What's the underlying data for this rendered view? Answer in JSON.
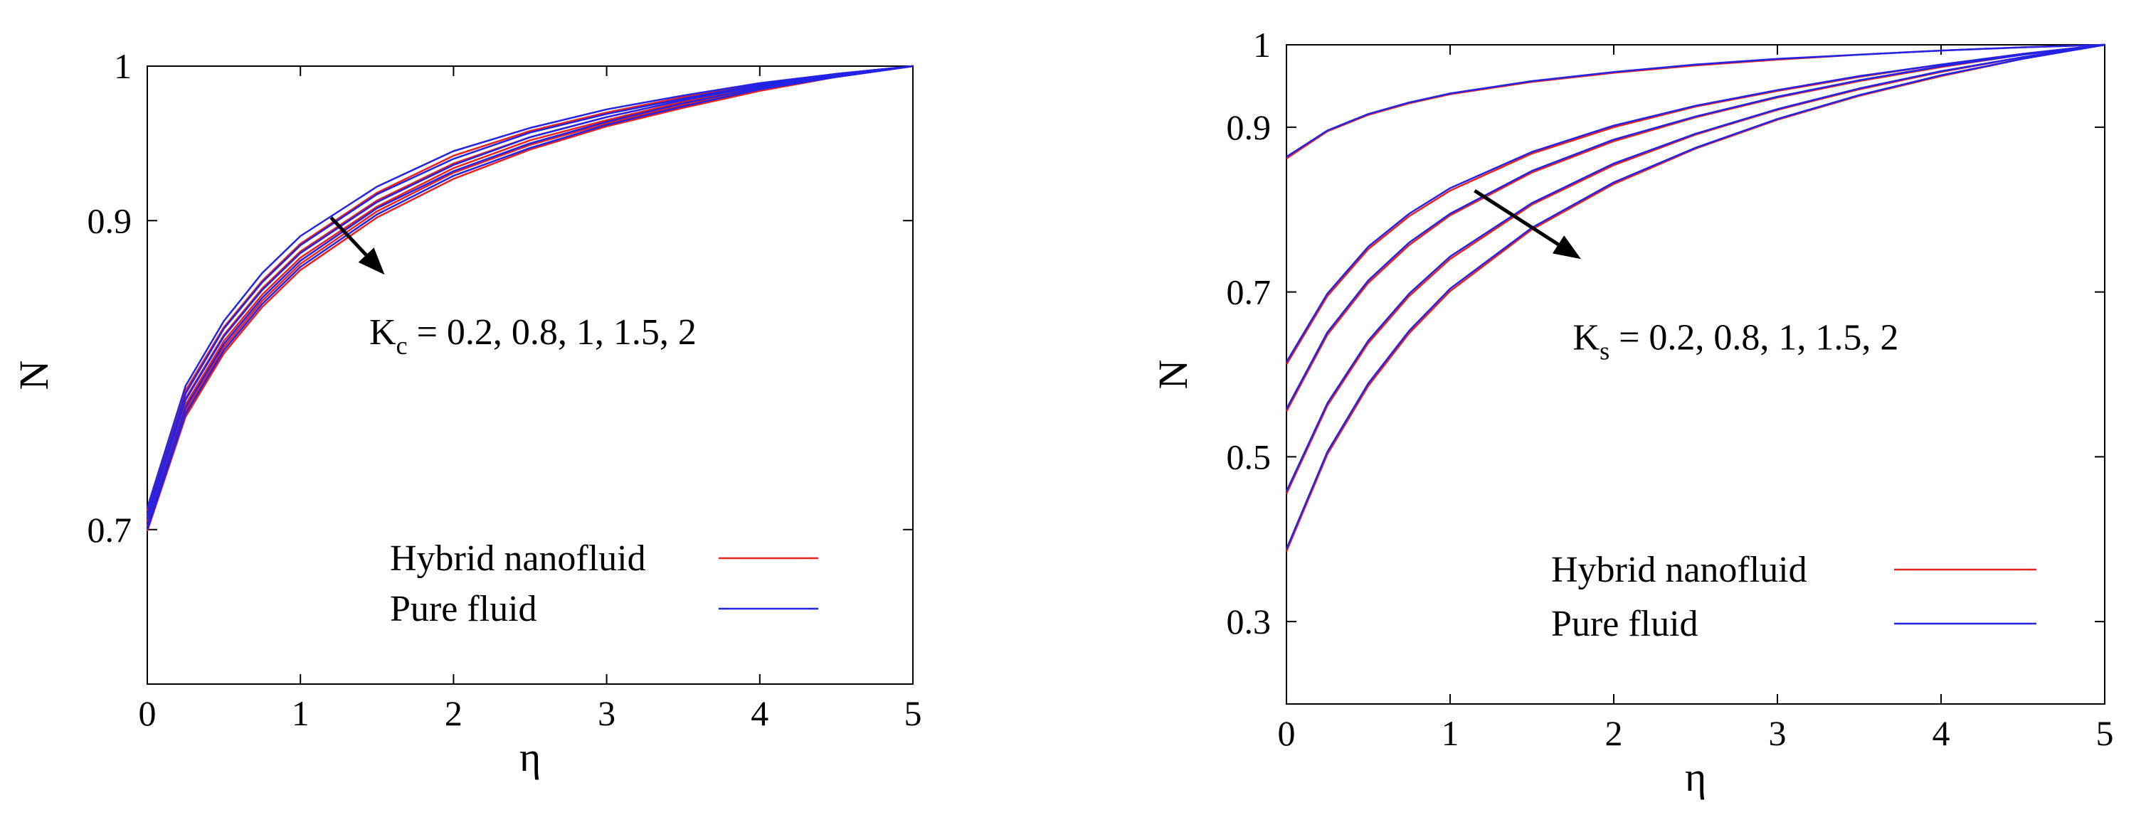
{
  "colors": {
    "hybrid": "#e8231e",
    "pure": "#2323e6",
    "axis": "#000000",
    "arrow": "#000000"
  },
  "chart_data": [
    {
      "type": "line",
      "xlabel": "η",
      "ylabel": "N",
      "xlim": [
        0,
        5
      ],
      "ylim": [
        0.6,
        1.0
      ],
      "xticks": [
        0,
        1,
        2,
        3,
        4,
        5
      ],
      "xtick_labels": [
        "0",
        "1",
        "2",
        "3",
        "4",
        "5"
      ],
      "yticks": [
        0.7,
        0.9,
        1.0
      ],
      "ytick_labels": [
        "0.7",
        "0.9",
        "1"
      ],
      "grid": false,
      "legend_position": "bottom-right",
      "legend": [
        "Hybrid nanofluid",
        "Pure fluid"
      ],
      "annotation": {
        "symbol": "K",
        "subscript": "c",
        "text": " = 0.2, 0.8, 1, 1.5, 2",
        "arrow_from": [
          1.2,
          0.902
        ],
        "arrow_to": [
          1.55,
          0.865
        ],
        "text_anchor": [
          1.45,
          0.82
        ]
      },
      "x": [
        0,
        0.25,
        0.5,
        0.75,
        1,
        1.5,
        2,
        2.5,
        3,
        3.5,
        4,
        4.5,
        5
      ],
      "series": [
        {
          "group": "Hybrid nanofluid",
          "param": "0.2",
          "values": [
            0.712,
            0.79,
            0.831,
            0.861,
            0.885,
            0.918,
            0.942,
            0.958,
            0.97,
            0.98,
            0.988,
            0.995,
            1.0
          ]
        },
        {
          "group": "Hybrid nanofluid",
          "param": "0.8",
          "values": [
            0.708,
            0.785,
            0.826,
            0.856,
            0.88,
            0.913,
            0.937,
            0.954,
            0.967,
            0.978,
            0.987,
            0.994,
            1.0
          ]
        },
        {
          "group": "Hybrid nanofluid",
          "param": "1",
          "values": [
            0.705,
            0.781,
            0.822,
            0.852,
            0.876,
            0.909,
            0.934,
            0.952,
            0.965,
            0.977,
            0.986,
            0.994,
            1.0
          ]
        },
        {
          "group": "Hybrid nanofluid",
          "param": "1.5",
          "values": [
            0.702,
            0.777,
            0.818,
            0.848,
            0.872,
            0.906,
            0.931,
            0.949,
            0.963,
            0.975,
            0.985,
            0.993,
            1.0
          ]
        },
        {
          "group": "Hybrid nanofluid",
          "param": "2",
          "values": [
            0.699,
            0.773,
            0.814,
            0.844,
            0.868,
            0.902,
            0.927,
            0.946,
            0.961,
            0.973,
            0.984,
            0.993,
            1.0
          ]
        },
        {
          "group": "Pure fluid",
          "param": "0.2",
          "values": [
            0.714,
            0.793,
            0.835,
            0.866,
            0.89,
            0.922,
            0.945,
            0.96,
            0.972,
            0.981,
            0.989,
            0.995,
            1.0
          ]
        },
        {
          "group": "Pure fluid",
          "param": "0.8",
          "values": [
            0.71,
            0.788,
            0.83,
            0.86,
            0.884,
            0.917,
            0.94,
            0.957,
            0.969,
            0.979,
            0.988,
            0.995,
            1.0
          ]
        },
        {
          "group": "Pure fluid",
          "param": "1",
          "values": [
            0.707,
            0.784,
            0.825,
            0.855,
            0.879,
            0.912,
            0.936,
            0.954,
            0.967,
            0.978,
            0.987,
            0.994,
            1.0
          ]
        },
        {
          "group": "Pure fluid",
          "param": "1.5",
          "values": [
            0.703,
            0.779,
            0.82,
            0.85,
            0.874,
            0.908,
            0.932,
            0.95,
            0.964,
            0.976,
            0.986,
            0.993,
            1.0
          ]
        },
        {
          "group": "Pure fluid",
          "param": "2",
          "values": [
            0.7,
            0.775,
            0.816,
            0.846,
            0.87,
            0.904,
            0.929,
            0.947,
            0.962,
            0.974,
            0.985,
            0.993,
            1.0
          ]
        }
      ]
    },
    {
      "type": "line",
      "xlabel": "η",
      "ylabel": "N",
      "xlim": [
        0,
        5
      ],
      "ylim": [
        0.2,
        1.0
      ],
      "xticks": [
        0,
        1,
        2,
        3,
        4,
        5
      ],
      "xtick_labels": [
        "0",
        "1",
        "2",
        "3",
        "4",
        "5"
      ],
      "yticks": [
        0.3,
        0.5,
        0.7,
        0.9,
        1.0
      ],
      "ytick_labels": [
        "0.3",
        "0.5",
        "0.7",
        "0.9",
        "1"
      ],
      "grid": false,
      "legend_position": "bottom-right",
      "legend": [
        "Hybrid nanofluid",
        "Pure fluid"
      ],
      "annotation": {
        "symbol": "K",
        "subscript": "s",
        "text": " = 0.2, 0.8, 1, 1.5, 2",
        "arrow_from": [
          1.15,
          0.823
        ],
        "arrow_to": [
          1.8,
          0.74
        ],
        "text_anchor": [
          1.75,
          0.63
        ]
      },
      "x": [
        0,
        0.25,
        0.5,
        0.75,
        1,
        1.5,
        2,
        2.5,
        3,
        3.5,
        4,
        4.5,
        5
      ],
      "series": [
        {
          "group": "Hybrid nanofluid",
          "param": "0.2",
          "values": [
            0.862,
            0.895,
            0.915,
            0.929,
            0.94,
            0.955,
            0.966,
            0.975,
            0.982,
            0.988,
            0.993,
            0.997,
            1.0
          ]
        },
        {
          "group": "Hybrid nanofluid",
          "param": "0.8",
          "values": [
            0.612,
            0.695,
            0.752,
            0.792,
            0.823,
            0.868,
            0.9,
            0.925,
            0.944,
            0.961,
            0.976,
            0.989,
            1.0
          ]
        },
        {
          "group": "Hybrid nanofluid",
          "param": "1",
          "values": [
            0.555,
            0.648,
            0.711,
            0.757,
            0.793,
            0.845,
            0.883,
            0.912,
            0.936,
            0.956,
            0.973,
            0.988,
            1.0
          ]
        },
        {
          "group": "Hybrid nanofluid",
          "param": "1.5",
          "values": [
            0.455,
            0.562,
            0.638,
            0.695,
            0.74,
            0.806,
            0.854,
            0.891,
            0.921,
            0.946,
            0.967,
            0.985,
            1.0
          ]
        },
        {
          "group": "Hybrid nanofluid",
          "param": "2",
          "values": [
            0.385,
            0.503,
            0.586,
            0.65,
            0.701,
            0.776,
            0.831,
            0.874,
            0.909,
            0.938,
            0.962,
            0.983,
            1.0
          ]
        },
        {
          "group": "Pure fluid",
          "param": "0.2",
          "values": [
            0.864,
            0.896,
            0.916,
            0.93,
            0.941,
            0.956,
            0.967,
            0.976,
            0.983,
            0.988,
            0.993,
            0.997,
            1.0
          ]
        },
        {
          "group": "Pure fluid",
          "param": "0.8",
          "values": [
            0.615,
            0.698,
            0.755,
            0.795,
            0.826,
            0.87,
            0.902,
            0.926,
            0.945,
            0.962,
            0.976,
            0.989,
            1.0
          ]
        },
        {
          "group": "Pure fluid",
          "param": "1",
          "values": [
            0.558,
            0.651,
            0.714,
            0.76,
            0.795,
            0.847,
            0.885,
            0.913,
            0.937,
            0.957,
            0.974,
            0.988,
            1.0
          ]
        },
        {
          "group": "Pure fluid",
          "param": "1.5",
          "values": [
            0.458,
            0.565,
            0.641,
            0.698,
            0.743,
            0.808,
            0.856,
            0.892,
            0.922,
            0.947,
            0.968,
            0.985,
            1.0
          ]
        },
        {
          "group": "Pure fluid",
          "param": "2",
          "values": [
            0.388,
            0.506,
            0.589,
            0.653,
            0.704,
            0.778,
            0.833,
            0.875,
            0.91,
            0.939,
            0.963,
            0.983,
            1.0
          ]
        }
      ]
    }
  ]
}
